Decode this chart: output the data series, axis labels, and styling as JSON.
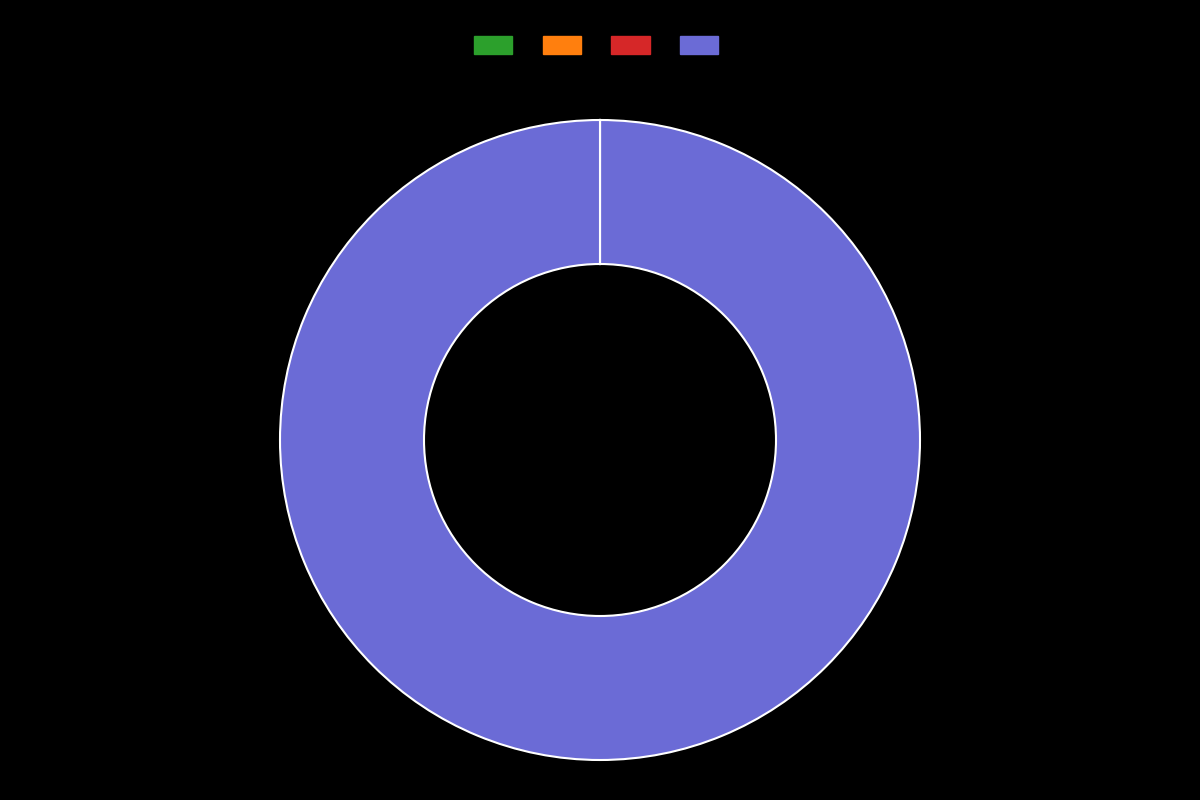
{
  "values": [
    0.001,
    0.001,
    0.001,
    99.997
  ],
  "colors": [
    "#2ca02c",
    "#ff7f0e",
    "#d62728",
    "#6b6bd6"
  ],
  "legend_labels": [
    "",
    "",
    "",
    ""
  ],
  "background_color": "#000000",
  "wedge_edge_color": "#ffffff",
  "wedge_edge_width": 1.5,
  "donut_width": 0.45,
  "start_angle": 90,
  "figsize": [
    12,
    8
  ],
  "dpi": 100
}
